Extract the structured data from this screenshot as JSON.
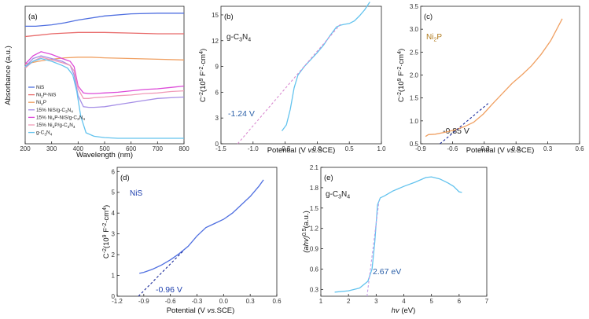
{
  "colors": {
    "nis": "#4f6fe0",
    "ni2p_nis": "#e86a6a",
    "ni2p": "#f0a062",
    "nis_gcn": "#a58ee6",
    "ni2p_nis_gcn": "#dc4ad8",
    "ni2p_gcn": "#f09ab8",
    "gcn": "#63c3ee",
    "fit": "#d98ad0",
    "fit_dark": "#1a2a9a",
    "fit_e": "#c49be6",
    "label_b": "#2a5fa8",
    "label_c": "#b07a1c",
    "label_d": "#1d3fae"
  },
  "chart_data": [
    {
      "panel": "(a)",
      "type": "line",
      "xlabel": "Wavelength (nm)",
      "ylabel": "Absorbance (a.u.)",
      "xlim": [
        200,
        800
      ],
      "x_ticks": [
        "200",
        "300",
        "400",
        "500",
        "600",
        "700",
        "800"
      ],
      "legend": "left",
      "series": [
        {
          "name": "NiS",
          "color_key": "nis",
          "x": [
            200,
            240,
            300,
            350,
            400,
            500,
            600,
            700,
            800
          ],
          "y": [
            0.855,
            0.855,
            0.865,
            0.88,
            0.9,
            0.93,
            0.945,
            0.95,
            0.95
          ]
        },
        {
          "name": "Ni2P-NiS",
          "color_key": "ni2p_nis",
          "x": [
            200,
            250,
            300,
            350,
            400,
            500,
            600,
            700,
            800
          ],
          "y": [
            0.78,
            0.79,
            0.8,
            0.805,
            0.81,
            0.81,
            0.805,
            0.8,
            0.8
          ]
        },
        {
          "name": "Ni2P",
          "color_key": "ni2p",
          "x": [
            200,
            250,
            300,
            350,
            400,
            450,
            500,
            600,
            700,
            800
          ],
          "y": [
            0.58,
            0.6,
            0.615,
            0.625,
            0.63,
            0.63,
            0.625,
            0.62,
            0.615,
            0.61
          ]
        },
        {
          "name": "15% NiS/g-C3N4",
          "color_key": "nis_gcn",
          "x": [
            200,
            230,
            260,
            300,
            340,
            370,
            385,
            400,
            420,
            440,
            460,
            500,
            550,
            600,
            650,
            700,
            750,
            800
          ],
          "y": [
            0.56,
            0.62,
            0.64,
            0.62,
            0.6,
            0.57,
            0.5,
            0.35,
            0.27,
            0.265,
            0.265,
            0.27,
            0.285,
            0.3,
            0.315,
            0.33,
            0.335,
            0.34
          ]
        },
        {
          "name": "15% Ni2P-NiS/g-C3N4",
          "color_key": "ni2p_nis_gcn",
          "x": [
            200,
            230,
            260,
            300,
            340,
            370,
            385,
            400,
            420,
            440,
            460,
            500,
            550,
            600,
            650,
            700,
            750,
            800
          ],
          "y": [
            0.58,
            0.64,
            0.67,
            0.65,
            0.62,
            0.6,
            0.56,
            0.42,
            0.37,
            0.365,
            0.365,
            0.37,
            0.375,
            0.385,
            0.395,
            0.4,
            0.41,
            0.42
          ]
        },
        {
          "name": "15% Ni2P/g-C3N4",
          "color_key": "ni2p_gcn",
          "x": [
            200,
            230,
            260,
            300,
            340,
            370,
            385,
            400,
            420,
            440,
            460,
            500,
            550,
            600,
            650,
            700,
            750,
            800
          ],
          "y": [
            0.55,
            0.6,
            0.63,
            0.61,
            0.59,
            0.57,
            0.53,
            0.4,
            0.33,
            0.33,
            0.335,
            0.34,
            0.35,
            0.355,
            0.365,
            0.37,
            0.38,
            0.385
          ]
        },
        {
          "name": "g-C3N4",
          "color_key": "gcn",
          "x": [
            200,
            230,
            260,
            300,
            340,
            360,
            380,
            395,
            410,
            430,
            460,
            500,
            550,
            600,
            650,
            700,
            750,
            800
          ],
          "y": [
            0.56,
            0.6,
            0.62,
            0.6,
            0.57,
            0.55,
            0.5,
            0.38,
            0.2,
            0.08,
            0.055,
            0.045,
            0.04,
            0.04,
            0.04,
            0.04,
            0.04,
            0.04
          ]
        }
      ]
    },
    {
      "panel": "(b)",
      "type": "line",
      "xlabel": "Potential (V vs.SCE)",
      "ylabel": "C-2(109F-2cm4)",
      "xlim": [
        -1.5,
        1.0
      ],
      "ylim": [
        0,
        16
      ],
      "x_ticks": [
        "-1.5",
        "-1.0",
        "-0.5",
        "0.0",
        "0.5",
        "1.0"
      ],
      "y_ticks": [
        "0",
        "3",
        "6",
        "9",
        "12",
        "15"
      ],
      "name": "g-C3N4",
      "annotation": "-1.24 V",
      "series": [
        {
          "name": "g-C3N4",
          "color_key": "gcn",
          "x": [
            -0.55,
            -0.48,
            -0.42,
            -0.36,
            -0.3,
            -0.2,
            -0.1,
            0.0,
            0.1,
            0.2,
            0.3,
            0.36,
            0.42,
            0.5,
            0.58,
            0.66,
            0.74,
            0.82
          ],
          "y": [
            1.5,
            2.2,
            4.0,
            6.5,
            8.0,
            9.0,
            9.8,
            10.6,
            11.5,
            12.6,
            13.6,
            13.8,
            13.9,
            14.0,
            14.3,
            14.9,
            15.6,
            16.5
          ]
        },
        {
          "name": "fit",
          "dashed": true,
          "color_key": "fit",
          "x": [
            -1.24,
            0.36
          ],
          "y": [
            0,
            13.9
          ]
        }
      ]
    },
    {
      "panel": "(c)",
      "type": "line",
      "xlabel": "Potential (V vs.SCE)",
      "ylabel": "C-2(109F-2cm4)",
      "xlim": [
        -1.05,
        0.6
      ],
      "ylim": [
        0.5,
        3.5
      ],
      "x_ticks": [
        "-0.9",
        "-0.6",
        "-0.3",
        "0.0",
        "0.3",
        "0.6"
      ],
      "y_ticks": [
        "0.5",
        "1.0",
        "1.5",
        "2.0",
        "2.5",
        "3.0",
        "3.5"
      ],
      "name": "Ni2P",
      "annotation": "-0.85 V",
      "series": [
        {
          "name": "Ni2P",
          "color_key": "ni2p",
          "x": [
            -1.0,
            -0.97,
            -0.9,
            -0.8,
            -0.7,
            -0.6,
            -0.5,
            -0.4,
            -0.3,
            -0.2,
            -0.1,
            0.0,
            0.1,
            0.2,
            0.3,
            0.42
          ],
          "y": [
            0.66,
            0.7,
            0.71,
            0.75,
            0.8,
            0.87,
            0.97,
            1.15,
            1.38,
            1.6,
            1.82,
            2.0,
            2.2,
            2.45,
            2.75,
            3.23
          ]
        },
        {
          "name": "fit",
          "dashed": true,
          "color_key": "fit_dark",
          "x": [
            -0.85,
            -0.35
          ],
          "y": [
            0.5,
            1.38
          ]
        }
      ]
    },
    {
      "panel": "(d)",
      "type": "line",
      "xlabel": "Potential (V vs.SCE)",
      "ylabel": "C-2(109F-2cm4)",
      "xlim": [
        -1.2,
        0.6
      ],
      "ylim": [
        0,
        6.2
      ],
      "x_ticks": [
        "-1.2",
        "-0.9",
        "-0.6",
        "-0.3",
        "0.0",
        "0.3",
        "0.6"
      ],
      "y_ticks": [
        "0",
        "1",
        "2",
        "3",
        "4",
        "5",
        "6"
      ],
      "name": "NiS",
      "annotation": "-0.96 V",
      "series": [
        {
          "name": "NiS",
          "color_key": "nis",
          "x": [
            -0.95,
            -0.9,
            -0.8,
            -0.7,
            -0.6,
            -0.5,
            -0.4,
            -0.3,
            -0.2,
            -0.1,
            0.0,
            0.1,
            0.2,
            0.3,
            0.4,
            0.45
          ],
          "y": [
            1.1,
            1.15,
            1.3,
            1.5,
            1.75,
            2.05,
            2.4,
            2.9,
            3.3,
            3.5,
            3.7,
            4.0,
            4.4,
            4.8,
            5.3,
            5.6
          ]
        },
        {
          "name": "fit",
          "dashed": true,
          "color_key": "fit_dark",
          "x": [
            -0.96,
            -0.45
          ],
          "y": [
            0,
            2.2
          ]
        }
      ]
    },
    {
      "panel": "(e)",
      "type": "line",
      "xlabel": "hv (eV)",
      "ylabel": "(ahv)0.5(a.u.)",
      "xlim": [
        1,
        7
      ],
      "ylim": [
        0.2,
        2.1
      ],
      "x_ticks": [
        "1",
        "2",
        "3",
        "4",
        "5",
        "6",
        "7"
      ],
      "y_ticks": [
        "0.3",
        "0.6",
        "0.9",
        "1.2",
        "1.5",
        "1.8",
        "2.1"
      ],
      "name": "g-C3N4",
      "annotation": "2.67 eV",
      "series": [
        {
          "name": "g-C3N4",
          "color_key": "gcn",
          "x": [
            1.5,
            2.0,
            2.4,
            2.7,
            2.85,
            2.95,
            3.05,
            3.15,
            3.3,
            3.6,
            4.0,
            4.4,
            4.8,
            5.0,
            5.3,
            5.6,
            5.8,
            6.0,
            6.1
          ],
          "y": [
            0.26,
            0.28,
            0.32,
            0.42,
            0.6,
            1.0,
            1.55,
            1.65,
            1.68,
            1.75,
            1.82,
            1.88,
            1.95,
            1.96,
            1.93,
            1.87,
            1.82,
            1.74,
            1.73
          ]
        },
        {
          "name": "fit",
          "dashed": true,
          "color_key": "fit_e",
          "x": [
            2.67,
            3.1
          ],
          "y": [
            0.2,
            1.6
          ]
        }
      ]
    }
  ],
  "panel_a": {
    "label": "(a)",
    "xlabel": "Wavelength (nm)",
    "ylabel": "Absorbance (a.u.)",
    "legend": [
      {
        "base": "NiS",
        "sub": "",
        "rest": ""
      },
      {
        "base": "Ni",
        "sub": "2",
        "rest": "P-NiS"
      },
      {
        "base": "Ni",
        "sub": "2",
        "rest": "P"
      },
      {
        "base": "15% NiS/g-C",
        "sub": "3",
        "rest": "N",
        "sub2": "4"
      },
      {
        "base": "15% Ni",
        "sub": "2",
        "rest": "P-NiS/g-C",
        "sub2": "3",
        "rest2": "N",
        "sub3": "4"
      },
      {
        "base": "15% Ni",
        "sub": "2",
        "rest": "P/g-C",
        "sub2": "3",
        "rest2": "N",
        "sub3": "4"
      },
      {
        "base": "g-C",
        "sub": "3",
        "rest": "N",
        "sub2": "4"
      }
    ]
  },
  "panel_b": {
    "label": "(b)",
    "name_main": "g-C",
    "name_sub1": "3",
    "name_mid": "N",
    "name_sub2": "4",
    "annotation": "-1.24 V",
    "xlabel_1": "Potential (V ",
    "xlabel_2": "vs.",
    "xlabel_3": "SCE)"
  },
  "panel_c": {
    "label": "(c)",
    "name_main": "Ni",
    "name_sub1": "2",
    "name_mid": "P",
    "annotation": "-0.85 V",
    "xlabel_1": "Potential (V ",
    "xlabel_2": "vs.",
    "xlabel_3": "SCE)"
  },
  "panel_d": {
    "label": "(d)",
    "name_main": "NiS",
    "annotation": "-0.96 V",
    "xlabel_1": "Potential (V ",
    "xlabel_2": "vs.",
    "xlabel_3": "SCE)"
  },
  "panel_e": {
    "label": "(e)",
    "name_main": "g-C",
    "name_sub1": "3",
    "name_mid": "N",
    "name_sub2": "4",
    "annotation": "2.67 eV",
    "xlabel_1": "hv",
    "xlabel_2": " (eV)"
  },
  "ylabel_c": {
    "p1": "C",
    "sup1": "-2",
    "p2": "(10",
    "sup2": "9",
    "p3": " F",
    "sup3": "-2",
    "p4": "·cm",
    "sup4": "4",
    "p5": ")"
  },
  "ylabel_e": {
    "p1": "(ahv)",
    "sup1": "0.5",
    "p2": "(a.u.)"
  }
}
